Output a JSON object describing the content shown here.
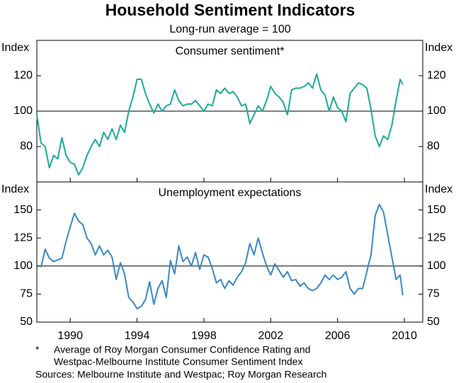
{
  "title": "Household Sentiment Indicators",
  "subtitle": "Long-run average = 100",
  "footnote_marker": "*",
  "footnote": [
    "Average of Roy Morgan Consumer Confidence Rating and",
    "Westpac-Melbourne Institute Consumer Sentiment Index"
  ],
  "sources": "Sources:  Melbourne Institute and Westpac; Roy Morgan Research",
  "chart_data": [
    {
      "type": "line",
      "title": "Consumer sentiment*",
      "ylabel": "Index",
      "color": "#1aaa9a",
      "reference_line": 100,
      "xlim": [
        1988,
        2011.1
      ],
      "ylim": [
        60,
        140
      ],
      "yticks": [
        80,
        100,
        120
      ],
      "x": [
        1988.0,
        1988.25,
        1988.5,
        1988.75,
        1989.0,
        1989.25,
        1989.5,
        1989.75,
        1990.0,
        1990.25,
        1990.5,
        1990.75,
        1991.0,
        1991.25,
        1991.5,
        1991.75,
        1992.0,
        1992.25,
        1992.5,
        1992.75,
        1993.0,
        1993.25,
        1993.5,
        1993.75,
        1994.0,
        1994.25,
        1994.5,
        1994.75,
        1995.0,
        1995.25,
        1995.5,
        1995.75,
        1996.0,
        1996.25,
        1996.5,
        1996.75,
        1997.0,
        1997.25,
        1997.5,
        1997.75,
        1998.0,
        1998.25,
        1998.5,
        1998.75,
        1999.0,
        1999.25,
        1999.5,
        1999.75,
        2000.0,
        2000.25,
        2000.5,
        2000.75,
        2001.0,
        2001.25,
        2001.5,
        2001.75,
        2002.0,
        2002.25,
        2002.5,
        2002.75,
        2003.0,
        2003.25,
        2003.5,
        2003.75,
        2004.0,
        2004.25,
        2004.5,
        2004.75,
        2005.0,
        2005.25,
        2005.5,
        2005.75,
        2006.0,
        2006.25,
        2006.5,
        2006.75,
        2007.0,
        2007.25,
        2007.5,
        2007.75,
        2008.0,
        2008.25,
        2008.5,
        2008.75,
        2009.0,
        2009.25,
        2009.5,
        2009.75,
        2009.9
      ],
      "values": [
        98,
        82,
        80,
        68,
        75,
        73,
        85,
        75,
        71,
        70,
        64,
        68,
        75,
        80,
        84,
        80,
        88,
        84,
        90,
        84,
        92,
        88,
        100,
        108,
        118,
        118,
        110,
        104,
        99,
        104,
        100,
        103,
        104,
        112,
        106,
        103,
        104,
        104,
        106,
        103,
        100,
        104,
        103,
        112,
        110,
        113,
        110,
        111,
        108,
        103,
        104,
        93,
        98,
        103,
        100,
        106,
        114,
        110,
        108,
        105,
        98,
        112,
        113,
        113,
        114,
        116,
        113,
        121,
        112,
        109,
        100,
        108,
        102,
        100,
        94,
        110,
        113,
        116,
        115,
        113,
        101,
        86,
        80,
        86,
        84,
        92,
        106,
        118,
        115
      ]
    },
    {
      "type": "line",
      "title": "Unemployment expectations",
      "ylabel": "Index",
      "color": "#3a87c8",
      "reference_line": 100,
      "xlim": [
        1988,
        2011.1
      ],
      "xticks": [
        1990,
        1994,
        1998,
        2002,
        2006,
        2010
      ],
      "ylim": [
        50,
        175
      ],
      "yticks": [
        50,
        75,
        100,
        125,
        150
      ],
      "x": [
        1988.25,
        1988.5,
        1988.75,
        1989.0,
        1989.5,
        1989.75,
        1990.0,
        1990.25,
        1990.5,
        1990.75,
        1991.0,
        1991.25,
        1991.5,
        1991.75,
        1992.0,
        1992.25,
        1992.5,
        1992.75,
        1993.0,
        1993.25,
        1993.5,
        1993.75,
        1994.0,
        1994.25,
        1994.5,
        1994.75,
        1995.0,
        1995.25,
        1995.5,
        1995.75,
        1996.0,
        1996.25,
        1996.5,
        1996.75,
        1997.0,
        1997.25,
        1997.5,
        1997.75,
        1998.0,
        1998.25,
        1998.5,
        1998.75,
        1999.0,
        1999.25,
        1999.5,
        1999.75,
        2000.0,
        2000.25,
        2000.5,
        2000.75,
        2001.0,
        2001.25,
        2001.5,
        2001.75,
        2002.0,
        2002.25,
        2002.5,
        2002.75,
        2003.0,
        2003.25,
        2003.5,
        2003.75,
        2004.0,
        2004.25,
        2004.5,
        2004.75,
        2005.0,
        2005.25,
        2005.5,
        2005.75,
        2006.0,
        2006.25,
        2006.5,
        2006.75,
        2007.0,
        2007.25,
        2007.5,
        2007.75,
        2008.0,
        2008.25,
        2008.5,
        2008.75,
        2009.0,
        2009.25,
        2009.5,
        2009.75,
        2009.9
      ],
      "values": [
        99,
        115,
        107,
        104,
        107,
        122,
        135,
        147,
        140,
        137,
        125,
        120,
        110,
        118,
        110,
        114,
        108,
        88,
        103,
        93,
        72,
        68,
        62,
        64,
        70,
        86,
        66,
        80,
        87,
        72,
        105,
        93,
        118,
        104,
        108,
        100,
        112,
        97,
        110,
        108,
        98,
        85,
        88,
        80,
        87,
        83,
        90,
        95,
        103,
        120,
        110,
        125,
        112,
        100,
        92,
        102,
        96,
        90,
        95,
        87,
        88,
        82,
        85,
        80,
        78,
        80,
        85,
        92,
        88,
        92,
        88,
        90,
        95,
        80,
        75,
        80,
        80,
        95,
        110,
        145,
        155,
        148,
        128,
        108,
        88,
        92,
        74
      ]
    }
  ]
}
